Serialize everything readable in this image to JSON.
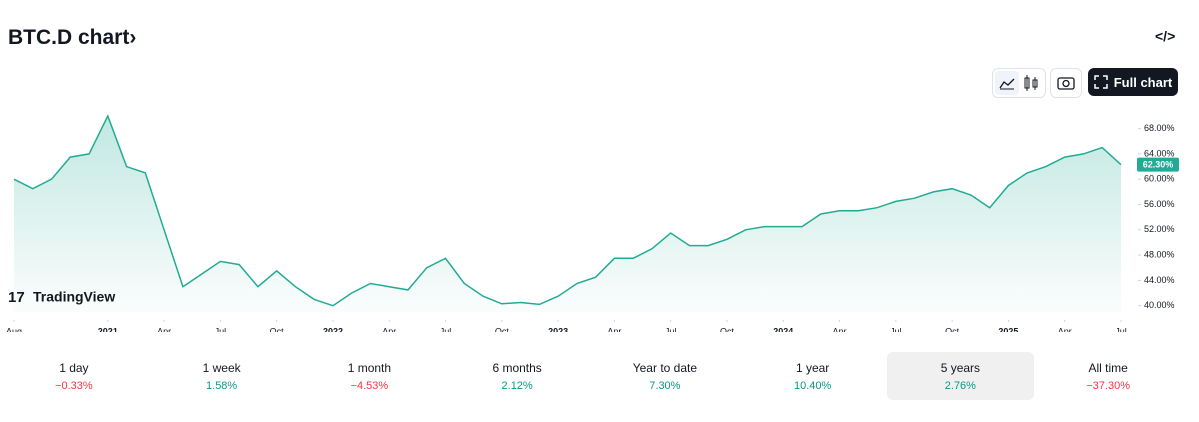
{
  "header": {
    "title": "BTC.D chart›",
    "full_chart": "Full chart",
    "logo": "TradingView"
  },
  "chart_data": {
    "type": "line",
    "color": "#22ab94",
    "x": [
      "2020-08",
      "2020-09",
      "2020-10",
      "2020-11",
      "2020-12",
      "2021-01",
      "2021-02",
      "2021-03",
      "2021-04",
      "2021-05",
      "2021-06",
      "2021-07",
      "2021-08",
      "2021-09",
      "2021-10",
      "2021-11",
      "2021-12",
      "2022-01",
      "2022-02",
      "2022-03",
      "2022-04",
      "2022-05",
      "2022-06",
      "2022-07",
      "2022-08",
      "2022-09",
      "2022-10",
      "2022-11",
      "2022-12",
      "2023-01",
      "2023-02",
      "2023-03",
      "2023-04",
      "2023-05",
      "2023-06",
      "2023-07",
      "2023-08",
      "2023-09",
      "2023-10",
      "2023-11",
      "2023-12",
      "2024-01",
      "2024-02",
      "2024-03",
      "2024-04",
      "2024-05",
      "2024-06",
      "2024-07",
      "2024-08",
      "2024-09",
      "2024-10",
      "2024-11",
      "2024-12",
      "2025-01",
      "2025-02",
      "2025-03",
      "2025-04",
      "2025-05",
      "2025-06",
      "2025-07"
    ],
    "values": [
      60,
      58.5,
      60,
      63.5,
      64,
      70,
      62,
      61,
      52,
      43,
      45,
      47,
      46.5,
      43,
      45.5,
      43,
      41,
      40,
      42,
      43.5,
      43,
      42.5,
      46,
      47.5,
      43.5,
      41.5,
      40.3,
      40.5,
      40.2,
      41.5,
      43.5,
      44.5,
      47.5,
      47.5,
      49,
      51.5,
      49.5,
      49.5,
      50.5,
      52,
      52.5,
      52.5,
      52.5,
      54.5,
      55,
      55,
      55.5,
      56.5,
      57,
      58,
      58.5,
      57.5,
      55.5,
      59,
      61,
      62,
      63.5,
      64,
      65,
      62.3
    ],
    "last_price": {
      "value": 62.3,
      "label": "62.30%"
    },
    "xlim": [
      "2020-08",
      "2025-07"
    ],
    "xticks": [
      {
        "value": "2020-08",
        "label": "Aug"
      },
      {
        "value": "2021-01",
        "label": "2021"
      },
      {
        "value": "2021-04",
        "label": "Apr"
      },
      {
        "value": "2021-07",
        "label": "Jul"
      },
      {
        "value": "2021-10",
        "label": "Oct"
      },
      {
        "value": "2022-01",
        "label": "2022"
      },
      {
        "value": "2022-04",
        "label": "Apr"
      },
      {
        "value": "2022-07",
        "label": "Jul"
      },
      {
        "value": "2022-10",
        "label": "Oct"
      },
      {
        "value": "2023-01",
        "label": "2023"
      },
      {
        "value": "2023-04",
        "label": "Apr"
      },
      {
        "value": "2023-07",
        "label": "Jul"
      },
      {
        "value": "2023-10",
        "label": "Oct"
      },
      {
        "value": "2024-01",
        "label": "2024"
      },
      {
        "value": "2024-04",
        "label": "Apr"
      },
      {
        "value": "2024-07",
        "label": "Jul"
      },
      {
        "value": "2024-10",
        "label": "Oct"
      },
      {
        "value": "2025-01",
        "label": "2025"
      },
      {
        "value": "2025-04",
        "label": "Apr"
      },
      {
        "value": "2025-07",
        "label": "Jul"
      }
    ],
    "ylim": [
      39,
      70
    ],
    "yticks": [
      {
        "value": 40,
        "label": "40.00%"
      },
      {
        "value": 44,
        "label": "44.00%"
      },
      {
        "value": 48,
        "label": "48.00%"
      },
      {
        "value": 52,
        "label": "52.00%"
      },
      {
        "value": 56,
        "label": "56.00%"
      },
      {
        "value": 60,
        "label": "60.00%"
      },
      {
        "value": 64,
        "label": "64.00%"
      },
      {
        "value": 68,
        "label": "68.00%"
      }
    ]
  },
  "periods": {
    "selected": 6,
    "items": [
      {
        "label": "1 day",
        "change": "−0.33%"
      },
      {
        "label": "1 week",
        "change": "1.58%"
      },
      {
        "label": "1 month",
        "change": "−4.53%"
      },
      {
        "label": "6 months",
        "change": "2.12%"
      },
      {
        "label": "Year to date",
        "change": "7.30%"
      },
      {
        "label": "1 year",
        "change": "10.40%"
      },
      {
        "label": "5 years",
        "change": "2.76%"
      },
      {
        "label": "All time",
        "change": "−37.30%"
      }
    ]
  }
}
